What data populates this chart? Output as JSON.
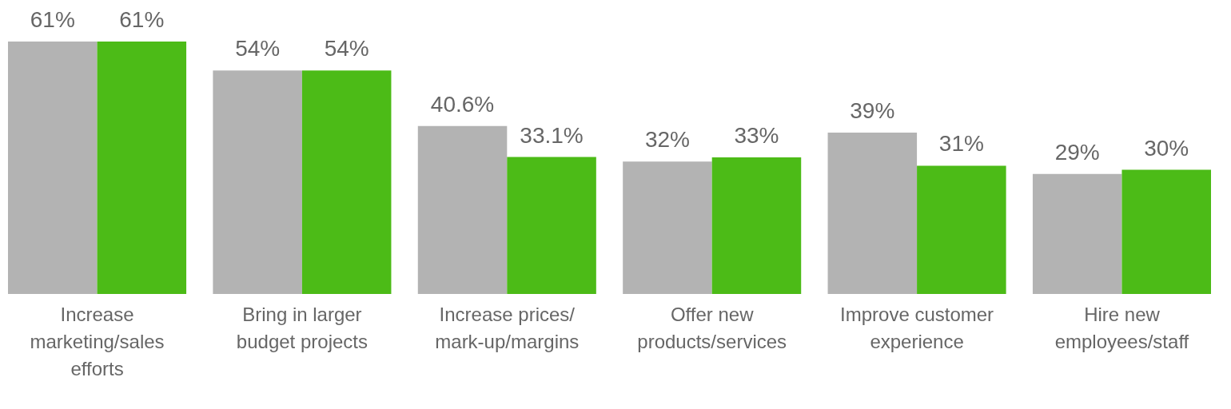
{
  "chart_data": {
    "type": "bar",
    "categories": [
      "Increase marketing/sales efforts",
      "Bring in larger budget projects",
      "Increase prices/mark-up/margins",
      "Offer new products/services",
      "Improve customer experience",
      "Hire new employees/staff"
    ],
    "series": [
      {
        "color": "#b3b3b3",
        "values": [
          61,
          54,
          40.6,
          32,
          39,
          29
        ],
        "value_labels": [
          "61%",
          "54%",
          "40.6%",
          "32%",
          "39%",
          "29%"
        ]
      },
      {
        "color": "#4cbb17",
        "values": [
          61,
          54,
          33.1,
          33,
          31,
          30
        ],
        "value_labels": [
          "61%",
          "54%",
          "33.1%",
          "33%",
          "31%",
          "30%"
        ]
      }
    ],
    "grid": false,
    "legend": false
  }
}
